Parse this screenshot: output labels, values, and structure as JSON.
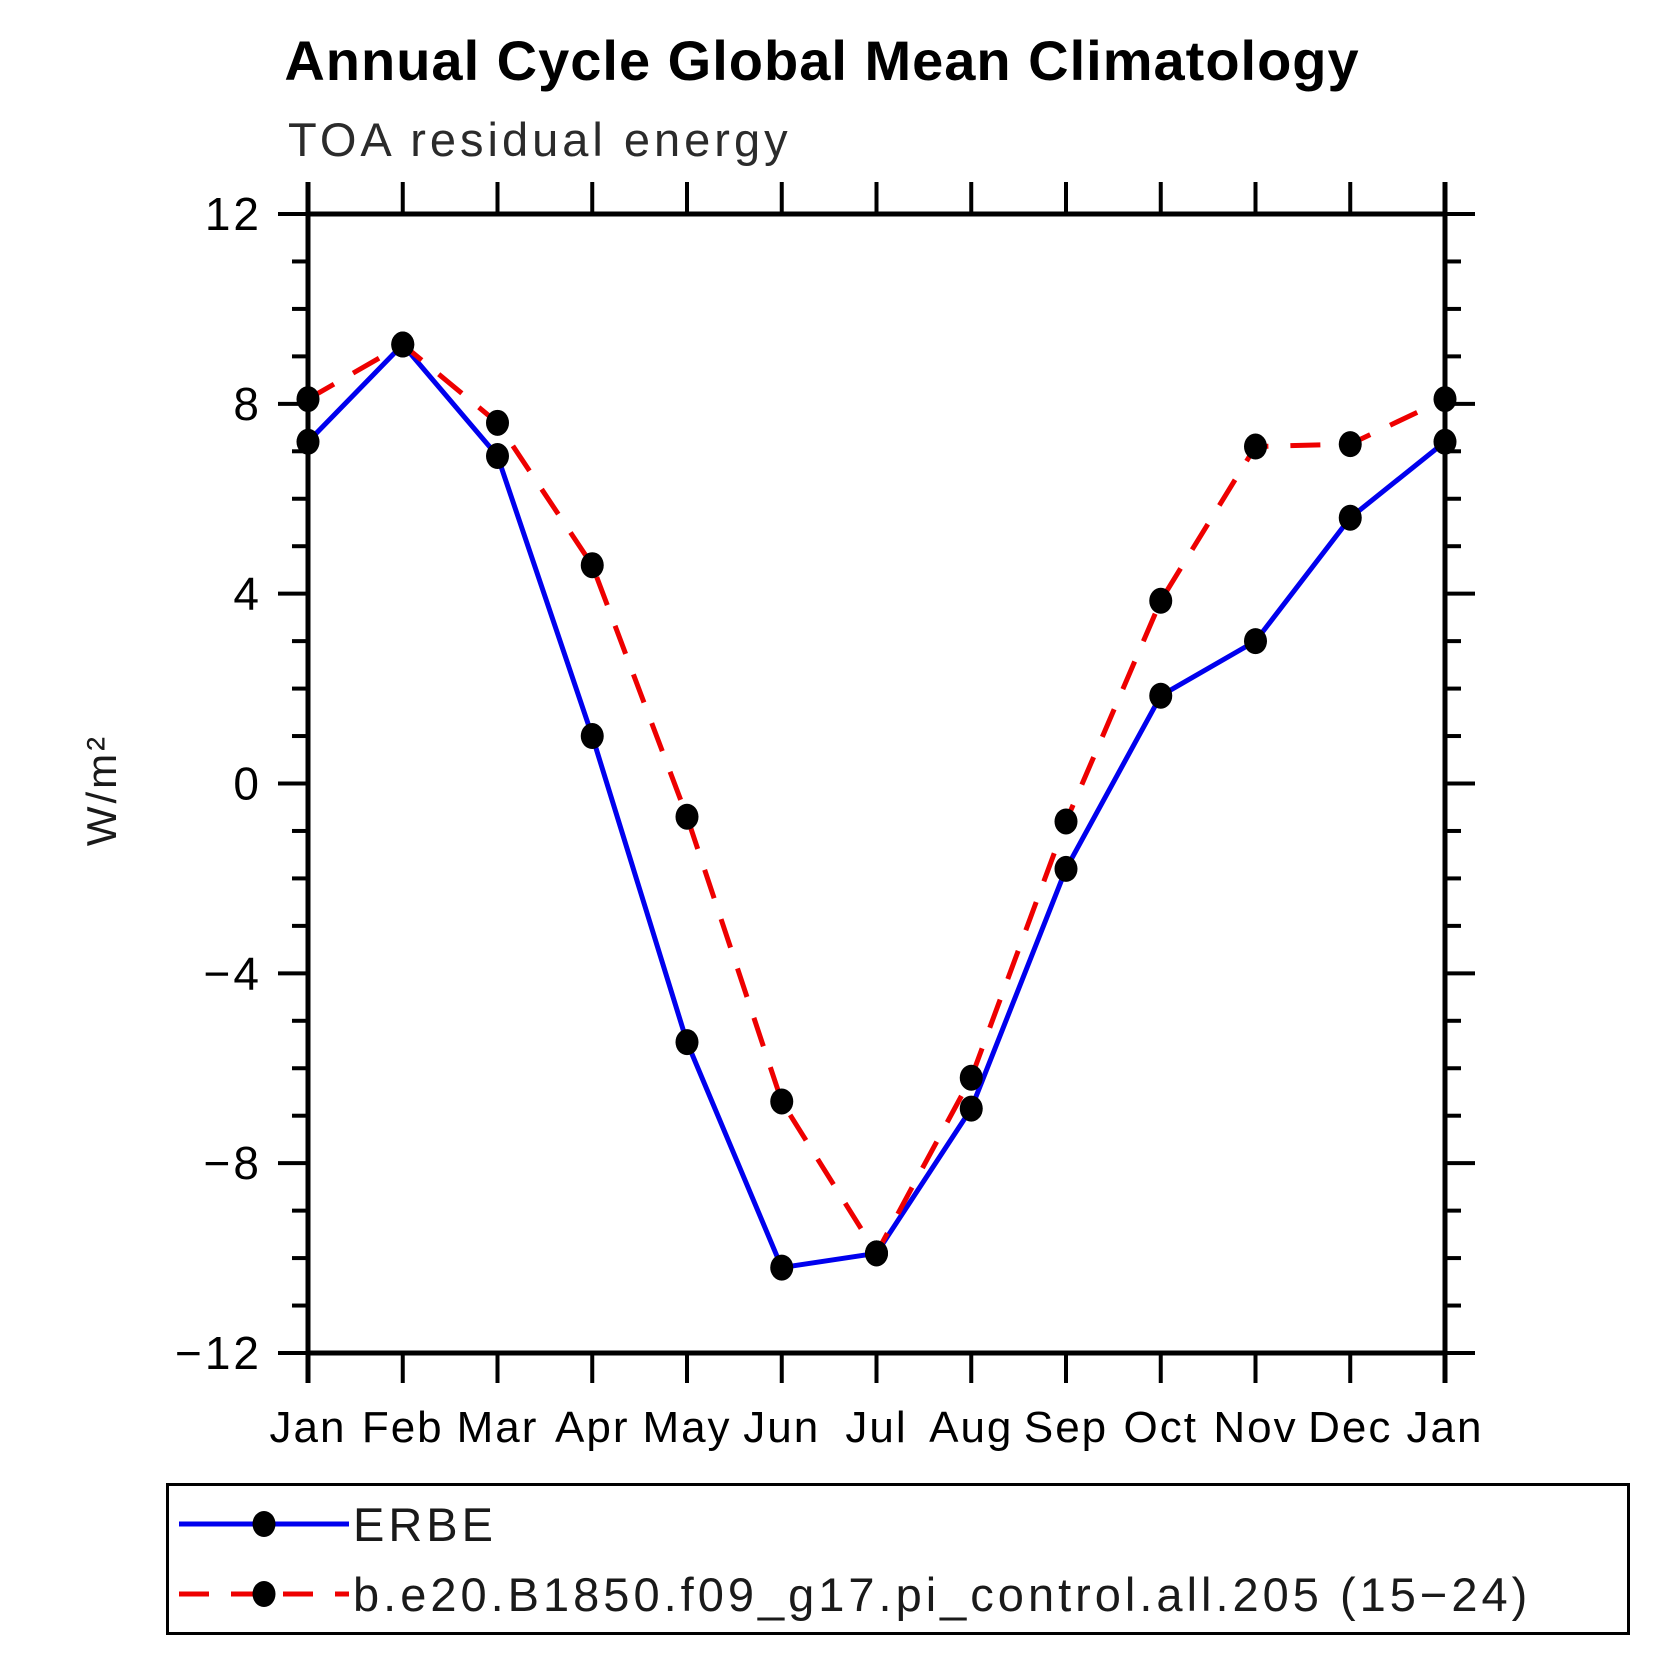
{
  "chart_data": {
    "type": "line",
    "title": "Annual Cycle Global Mean Climatology",
    "subtitle": "TOA residual energy",
    "ylabel": "W/m²",
    "categories": [
      "Jan",
      "Feb",
      "Mar",
      "Apr",
      "May",
      "Jun",
      "Jul",
      "Aug",
      "Sep",
      "Oct",
      "Nov",
      "Dec",
      "Jan"
    ],
    "series": [
      {
        "name": "ERBE",
        "color": "#0000ee",
        "style": "solid",
        "values": [
          7.2,
          9.25,
          6.9,
          1.0,
          -5.45,
          -10.2,
          -9.9,
          -6.85,
          -1.8,
          1.85,
          3.0,
          5.6,
          7.2
        ]
      },
      {
        "name": "b.e20.B1850.f09_g17.pi_control.all.205 (15−24)",
        "color": "#ee0000",
        "style": "dashed",
        "values": [
          8.1,
          9.25,
          7.6,
          4.6,
          -0.7,
          -6.7,
          -9.9,
          -6.2,
          -0.8,
          3.85,
          7.1,
          7.15,
          8.1
        ]
      }
    ],
    "marker": "filled-circle",
    "marker_color": "#000000",
    "ylim": [
      -12,
      12
    ],
    "ytick_values": [
      -12,
      -8,
      -4,
      0,
      4,
      8,
      12
    ],
    "ytick_labels": [
      "−12",
      "−8",
      "−4",
      "0",
      "4",
      "8",
      "12"
    ],
    "ytick_minor_step": 1,
    "grid": false,
    "legend_position": "bottom-box"
  },
  "legend": {
    "items": [
      {
        "label": "ERBE",
        "color": "#0000ee",
        "style": "solid"
      },
      {
        "label": "b.e20.B1850.f09_g17.pi_control.all.205 (15−24)",
        "color": "#ee0000",
        "style": "dashed"
      }
    ]
  }
}
